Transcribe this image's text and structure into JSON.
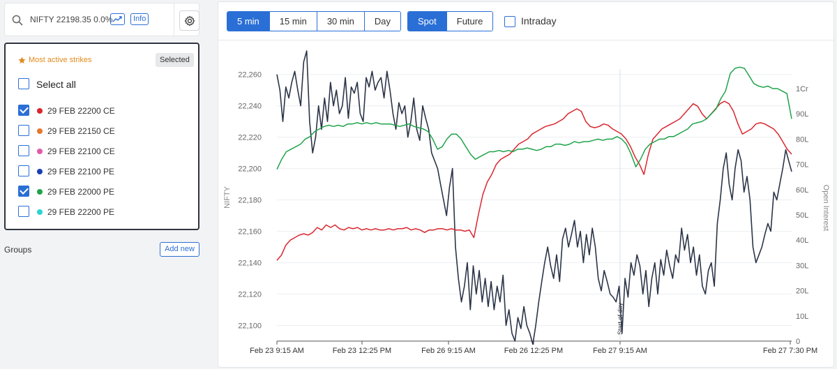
{
  "search": {
    "text": "NIFTY 22198.35 0.0%",
    "info_label": "Info"
  },
  "strikes": {
    "header": "Most active strikes",
    "selected_label": "Selected",
    "select_all_label": "Select all",
    "items": [
      {
        "label": "29 FEB 22200 CE",
        "color": "#d9262e",
        "checked": true
      },
      {
        "label": "29 FEB 22150 CE",
        "color": "#e8762c",
        "checked": false
      },
      {
        "label": "29 FEB 22100 CE",
        "color": "#e15aa8",
        "checked": false
      },
      {
        "label": "29 FEB 22100 PE",
        "color": "#1a3fb5",
        "checked": false
      },
      {
        "label": "29 FEB 22000 PE",
        "color": "#1fa34a",
        "checked": true
      },
      {
        "label": "29 FEB 22200 PE",
        "color": "#2ad4d4",
        "checked": false
      }
    ]
  },
  "groups": {
    "label": "Groups",
    "add_label": "Add new"
  },
  "toolbar": {
    "intervals": [
      "5 min",
      "15 min",
      "30 min",
      "Day"
    ],
    "active_interval": "5 min",
    "modes": [
      "Spot",
      "Future"
    ],
    "active_mode": "Spot",
    "intraday_label": "Intraday"
  },
  "chart_data": {
    "type": "line",
    "ylabel": "NIFTY",
    "y2label": "Open Interest",
    "ylim": [
      22090,
      22275
    ],
    "y_ticks": [
      22100,
      22120,
      22140,
      22160,
      22180,
      22200,
      22220,
      22240,
      22260
    ],
    "y_tick_labels": [
      "22,100",
      "22,120",
      "22,140",
      "22,160",
      "22,180",
      "22,200",
      "22,220",
      "22,240",
      "22,260"
    ],
    "y2_ticks": [
      "0",
      "10L",
      "20L",
      "30L",
      "40L",
      "50L",
      "60L",
      "70L",
      "80L",
      "90L",
      "1Cr"
    ],
    "x_tick_labels": [
      "Feb 23 9:15 AM",
      "Feb 23 12:25 PM",
      "Feb 26 9:15 AM",
      "Feb 26 12:25 PM",
      "Feb 27 9:15 AM",
      "Feb 27 7:30 PM"
    ],
    "annotation": "Start of day",
    "series": [
      {
        "color": "#2b3447",
        "values": [
          22260,
          22250,
          22230,
          22252,
          22245,
          22255,
          22262,
          22250,
          22240,
          22268,
          22275,
          22230,
          22210,
          22220,
          22240,
          22225,
          22245,
          22230,
          22255,
          22240,
          22250,
          22235,
          22240,
          22258,
          22232,
          22252,
          22248,
          22255,
          22235,
          22230,
          22258,
          22252,
          22262,
          22250,
          22255,
          22258,
          22245,
          22262,
          22250,
          22235,
          22225,
          22242,
          22235,
          22240,
          22220,
          22230,
          22245,
          22225,
          22218,
          22240,
          22232,
          22225,
          22210,
          22205,
          22200,
          22190,
          22180,
          22170,
          22188,
          22200,
          22150,
          22130,
          22115,
          22125,
          22140,
          22110,
          22138,
          22120,
          22135,
          22115,
          22130,
          22112,
          22128,
          22110,
          22125,
          22115,
          22132,
          22100,
          22110,
          22095,
          22090,
          22105,
          22098,
          22112,
          22100,
          22095,
          22088,
          22100,
          22115,
          22128,
          22140,
          22150,
          22138,
          22130,
          22145,
          22128,
          22155,
          22162,
          22150,
          22158,
          22167,
          22150,
          22160,
          22140,
          22158,
          22145,
          22162,
          22150,
          22130,
          22122,
          22135,
          22128,
          22120,
          22118,
          22115,
          22125,
          22095,
          22130,
          22118,
          22140,
          22132,
          22145,
          22138,
          22120,
          22135,
          22112,
          22130,
          22140,
          22120,
          22142,
          22132,
          22148,
          22138,
          22130,
          22145,
          22140,
          22162,
          22148,
          22158,
          22140,
          22150,
          22132,
          22145,
          22125,
          22120,
          22135,
          22140,
          22125,
          22165,
          22180,
          22200,
          22210,
          22190,
          22180,
          22200,
          22212,
          22205,
          22185,
          22195,
          22180,
          22150,
          22140,
          22145,
          22150,
          22158,
          22165,
          22160,
          22185,
          22180,
          22190,
          22200,
          22212,
          22205,
          22198
        ],
        "points_count_note": ""
      },
      {
        "color": "#d9262e",
        "values": [
          32,
          34,
          38,
          40,
          41,
          42,
          42.5,
          42,
          43,
          45,
          44,
          46,
          45,
          46,
          44.5,
          44,
          45,
          44.5,
          45,
          44,
          44.5,
          44,
          44.5,
          44,
          44,
          44.5,
          44,
          44.5,
          44.5,
          45,
          44,
          44.5,
          44,
          43,
          44,
          44,
          44.5,
          44.5,
          44,
          44.5,
          44,
          44,
          43.5,
          44,
          41,
          50,
          58,
          63,
          66,
          70,
          72,
          73,
          74,
          76,
          78,
          79,
          80,
          82,
          83,
          84,
          85,
          85.5,
          86,
          87,
          88,
          90,
          91,
          92,
          91,
          87,
          85,
          84.5,
          85,
          86,
          85.5,
          84,
          83,
          82,
          80,
          77,
          73,
          70,
          66,
          74,
          80,
          82,
          84,
          85,
          86,
          87,
          88,
          90,
          92,
          94,
          93,
          90,
          88,
          90,
          92,
          94,
          95,
          94,
          91,
          86,
          82,
          83,
          84,
          86,
          86.5,
          86,
          85,
          84,
          82,
          79,
          76,
          74
        ]
      },
      {
        "color": "#1fa34a",
        "values": [
          68,
          72,
          75,
          76,
          77,
          78,
          80,
          81,
          83,
          84,
          85,
          85.5,
          85,
          85.5,
          85,
          86,
          86,
          86.5,
          86,
          86.5,
          86,
          86.5,
          86,
          86,
          86,
          85.5,
          85,
          85.5,
          86,
          85,
          84.5,
          84,
          83,
          80,
          76,
          77,
          80,
          82,
          82,
          80,
          77,
          74,
          72,
          73,
          74,
          75,
          75,
          75.5,
          75,
          75.5,
          75,
          76,
          76,
          76.5,
          76,
          75.5,
          76,
          77,
          77,
          78,
          78,
          77.5,
          78,
          79,
          78.5,
          79,
          79,
          79.5,
          80,
          79.5,
          80,
          80,
          81,
          80,
          78,
          74,
          69,
          72,
          76,
          78,
          79,
          80,
          80,
          81,
          81,
          82,
          83,
          84,
          86,
          86.5,
          87,
          88,
          90,
          92,
          96,
          99,
          106,
          108,
          108.5,
          108,
          105,
          102,
          101,
          100.5,
          101,
          100,
          100,
          99,
          98,
          88
        ]
      }
    ]
  }
}
